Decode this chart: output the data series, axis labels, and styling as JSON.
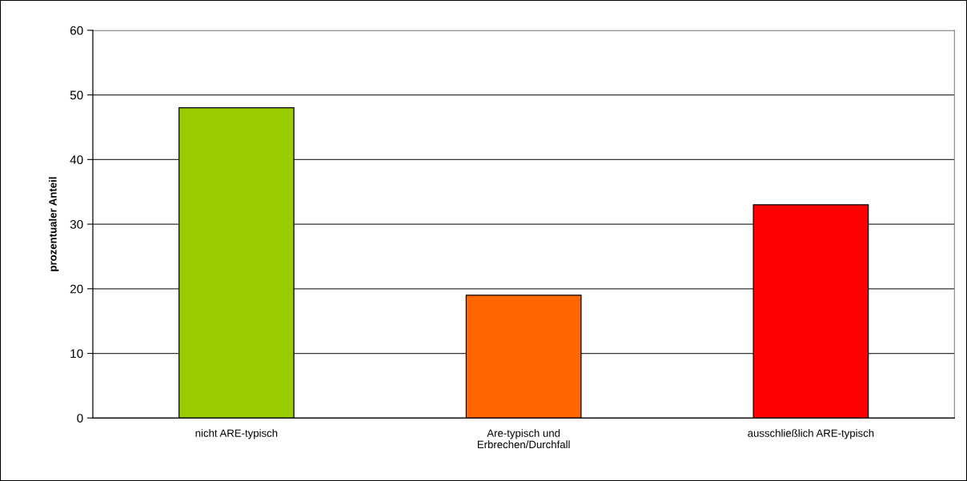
{
  "chart_data": {
    "type": "bar",
    "categories": [
      "nicht ARE-typisch",
      "Are-typisch und\nErbrechen/Durchfall",
      "ausschließlich ARE-typisch"
    ],
    "values": [
      48,
      19,
      33
    ],
    "colors": [
      "#99cc00",
      "#ff6600",
      "#ff0000"
    ],
    "ylabel": "prozentualer Anteil",
    "ylim": [
      0,
      60
    ],
    "yticks": [
      0,
      10,
      20,
      30,
      40,
      50,
      60
    ],
    "grid": "y"
  }
}
